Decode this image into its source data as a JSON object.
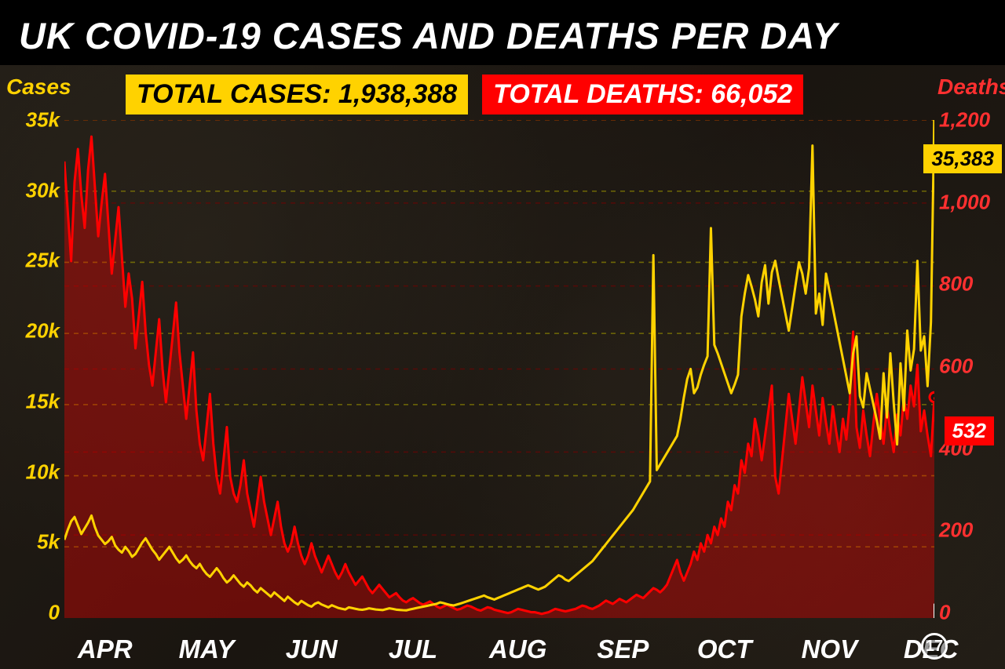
{
  "title": "UK COVID-19 CASES AND DEATHS PER DAY",
  "totals": {
    "cases_label": "TOTAL CASES: 1,938,388",
    "deaths_label": "TOTAL DEATHS: 66,052"
  },
  "axes": {
    "left": {
      "title": "Cases",
      "ticks": [
        0,
        5,
        10,
        15,
        20,
        25,
        30,
        35
      ],
      "tick_labels": [
        "0",
        "5k",
        "10k",
        "15k",
        "20k",
        "25k",
        "30k",
        "35k"
      ],
      "ylim": [
        0,
        35000
      ],
      "color": "#ffd200"
    },
    "right": {
      "title": "Deaths",
      "ticks": [
        0,
        200,
        400,
        600,
        800,
        1000,
        1200
      ],
      "tick_labels": [
        "0",
        "200",
        "400",
        "600",
        "800",
        "1,000",
        "1,200"
      ],
      "ylim": [
        0,
        1200
      ],
      "color": "#ff3030"
    },
    "x": {
      "months": [
        "APR",
        "MAY",
        "JUN",
        "JUL",
        "AUG",
        "SEP",
        "OCT",
        "NOV",
        "DEC"
      ],
      "end_marker_day": "17"
    }
  },
  "chart": {
    "type": "dual-axis-line-area",
    "background_color": "#1a1612",
    "grid_color_left": "#928a00",
    "grid_color_right": "#7a0000",
    "grid_dash": "6,6",
    "line_width": 3,
    "cases_line_color": "#ffd200",
    "deaths_line_color": "#ff0000",
    "deaths_fill_color": "rgba(255,0,0,0.35)",
    "endpoint_marker_radius": 6,
    "cases_data": [
      5500,
      6200,
      6800,
      7100,
      6500,
      5900,
      6300,
      6700,
      7200,
      6400,
      5800,
      5500,
      5200,
      5400,
      5700,
      5100,
      4800,
      4600,
      5000,
      4700,
      4300,
      4500,
      4900,
      5300,
      5600,
      5200,
      4800,
      4500,
      4100,
      4400,
      4700,
      5000,
      4600,
      4200,
      3900,
      4100,
      4400,
      4000,
      3700,
      3500,
      3800,
      3400,
      3100,
      2900,
      3200,
      3500,
      3200,
      2800,
      2500,
      2700,
      3000,
      2700,
      2400,
      2200,
      2500,
      2300,
      2000,
      1800,
      2100,
      1900,
      1700,
      1500,
      1800,
      1600,
      1400,
      1200,
      1500,
      1300,
      1100,
      950,
      1200,
      1050,
      900,
      800,
      1000,
      1100,
      950,
      850,
      750,
      900,
      800,
      700,
      650,
      600,
      750,
      700,
      650,
      600,
      580,
      620,
      680,
      640,
      600,
      580,
      560,
      620,
      680,
      640,
      590,
      570,
      550,
      540,
      600,
      650,
      700,
      750,
      800,
      850,
      900,
      950,
      1000,
      1100,
      1050,
      980,
      920,
      880,
      950,
      1020,
      1100,
      1180,
      1260,
      1340,
      1420,
      1500,
      1580,
      1460,
      1380,
      1300,
      1400,
      1500,
      1600,
      1700,
      1800,
      1900,
      2000,
      2100,
      2200,
      2300,
      2200,
      2100,
      2000,
      2100,
      2200,
      2400,
      2600,
      2800,
      3000,
      2900,
      2700,
      2600,
      2800,
      3000,
      3200,
      3400,
      3600,
      3800,
      4000,
      4300,
      4600,
      4900,
      5200,
      5500,
      5800,
      6100,
      6400,
      6700,
      7000,
      7300,
      7600,
      8000,
      8400,
      8800,
      9200,
      9600,
      25500,
      10400,
      10800,
      11200,
      11600,
      12000,
      12400,
      12800,
      14000,
      15500,
      16800,
      17500,
      15800,
      16200,
      17100,
      17800,
      18400,
      27400,
      19200,
      18600,
      17900,
      17200,
      16500,
      15800,
      16400,
      17100,
      21200,
      22800,
      24100,
      23300,
      22400,
      21200,
      23600,
      24800,
      22100,
      24300,
      25100,
      23800,
      22600,
      21400,
      20200,
      21800,
      23400,
      25000,
      24200,
      22800,
      24600,
      33200,
      21400,
      22800,
      20600,
      24200,
      23000,
      21800,
      20600,
      19400,
      18200,
      17000,
      15800,
      18600,
      19800,
      15600,
      14800,
      17200,
      16100,
      15000,
      13900,
      12600,
      17200,
      14100,
      18600,
      15100,
      12200,
      17900,
      14600,
      20200,
      17400,
      18900,
      25100,
      18800,
      19800,
      16300,
      20800,
      35383
    ],
    "deaths_data": [
      1100,
      980,
      860,
      1050,
      1130,
      1020,
      940,
      1080,
      1160,
      1040,
      920,
      1000,
      1070,
      950,
      830,
      910,
      990,
      870,
      750,
      830,
      770,
      650,
      730,
      810,
      690,
      610,
      560,
      640,
      720,
      600,
      520,
      600,
      680,
      760,
      640,
      560,
      480,
      560,
      640,
      500,
      420,
      380,
      460,
      540,
      420,
      340,
      300,
      380,
      460,
      340,
      300,
      280,
      320,
      380,
      300,
      260,
      220,
      280,
      340,
      280,
      240,
      200,
      240,
      280,
      220,
      180,
      160,
      180,
      220,
      180,
      150,
      130,
      150,
      180,
      150,
      130,
      110,
      130,
      150,
      130,
      110,
      95,
      110,
      130,
      110,
      95,
      80,
      90,
      100,
      85,
      70,
      60,
      70,
      80,
      70,
      60,
      50,
      55,
      60,
      50,
      42,
      38,
      44,
      48,
      42,
      36,
      32,
      36,
      40,
      34,
      28,
      24,
      28,
      32,
      28,
      24,
      20,
      22,
      26,
      30,
      28,
      24,
      20,
      18,
      22,
      26,
      24,
      20,
      18,
      16,
      14,
      12,
      14,
      18,
      22,
      20,
      18,
      16,
      14,
      14,
      12,
      10,
      12,
      14,
      18,
      22,
      20,
      18,
      16,
      18,
      20,
      22,
      26,
      30,
      28,
      24,
      22,
      26,
      30,
      36,
      42,
      38,
      34,
      40,
      46,
      42,
      38,
      44,
      50,
      56,
      52,
      48,
      56,
      64,
      72,
      68,
      62,
      70,
      80,
      100,
      120,
      140,
      110,
      90,
      110,
      130,
      160,
      140,
      180,
      160,
      200,
      180,
      220,
      200,
      240,
      220,
      280,
      260,
      320,
      300,
      380,
      350,
      420,
      390,
      480,
      440,
      380,
      440,
      500,
      560,
      340,
      300,
      380,
      460,
      540,
      480,
      420,
      500,
      580,
      520,
      460,
      560,
      500,
      440,
      530,
      470,
      420,
      510,
      450,
      400,
      480,
      430,
      520,
      690,
      460,
      410,
      500,
      440,
      390,
      470,
      540,
      480,
      420,
      510,
      450,
      400,
      490,
      440,
      530,
      480,
      560,
      510,
      610,
      450,
      500,
      440,
      390,
      532
    ],
    "latest_cases_value": "35,383",
    "latest_deaths_value": "532"
  }
}
